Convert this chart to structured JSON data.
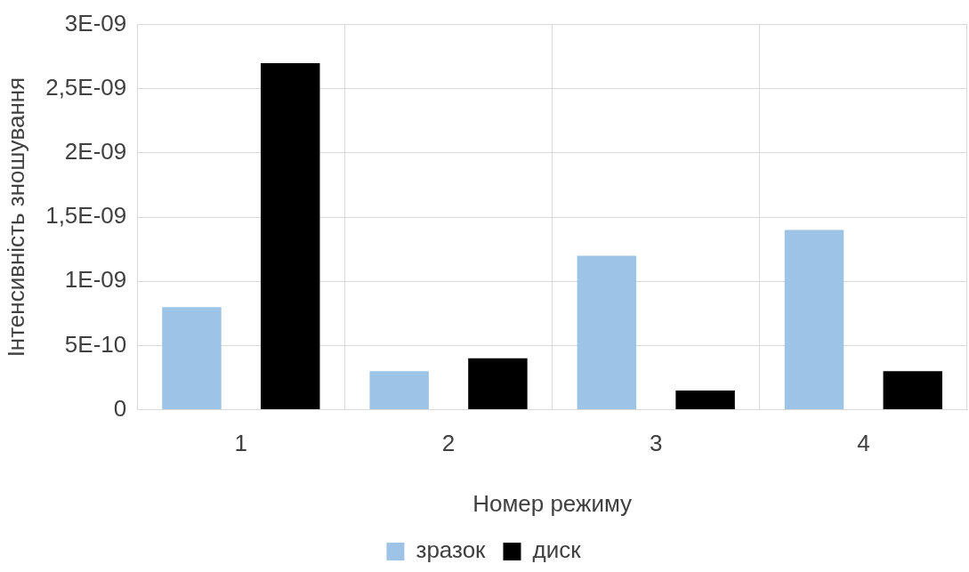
{
  "chart_data": {
    "type": "bar",
    "xlabel": "Номер режиму",
    "ylabel": "Інтенсивність зношування",
    "categories": [
      "1",
      "2",
      "3",
      "4"
    ],
    "series": [
      {
        "name": "зразок",
        "color": "#9dc3e6",
        "values": [
          8e-10,
          3e-10,
          1.2e-09,
          1.4e-09
        ]
      },
      {
        "name": "диск",
        "color": "#000000",
        "values": [
          2.7e-09,
          4e-10,
          1.5e-10,
          3e-10
        ]
      }
    ],
    "ylim": [
      0,
      3e-09
    ],
    "yticks": [
      0,
      {
        "value": 5e-10,
        "label": "5E-10"
      },
      {
        "value": 1e-09,
        "label": "1E-09"
      },
      {
        "value": 1.5e-09,
        "label": "1,5E-09"
      },
      {
        "value": 2e-09,
        "label": "2E-09"
      },
      {
        "value": 2.5e-09,
        "label": "2,5E-09"
      },
      {
        "value": 3e-09,
        "label": "3E-09"
      }
    ],
    "grid": true,
    "legend": "bottom"
  }
}
